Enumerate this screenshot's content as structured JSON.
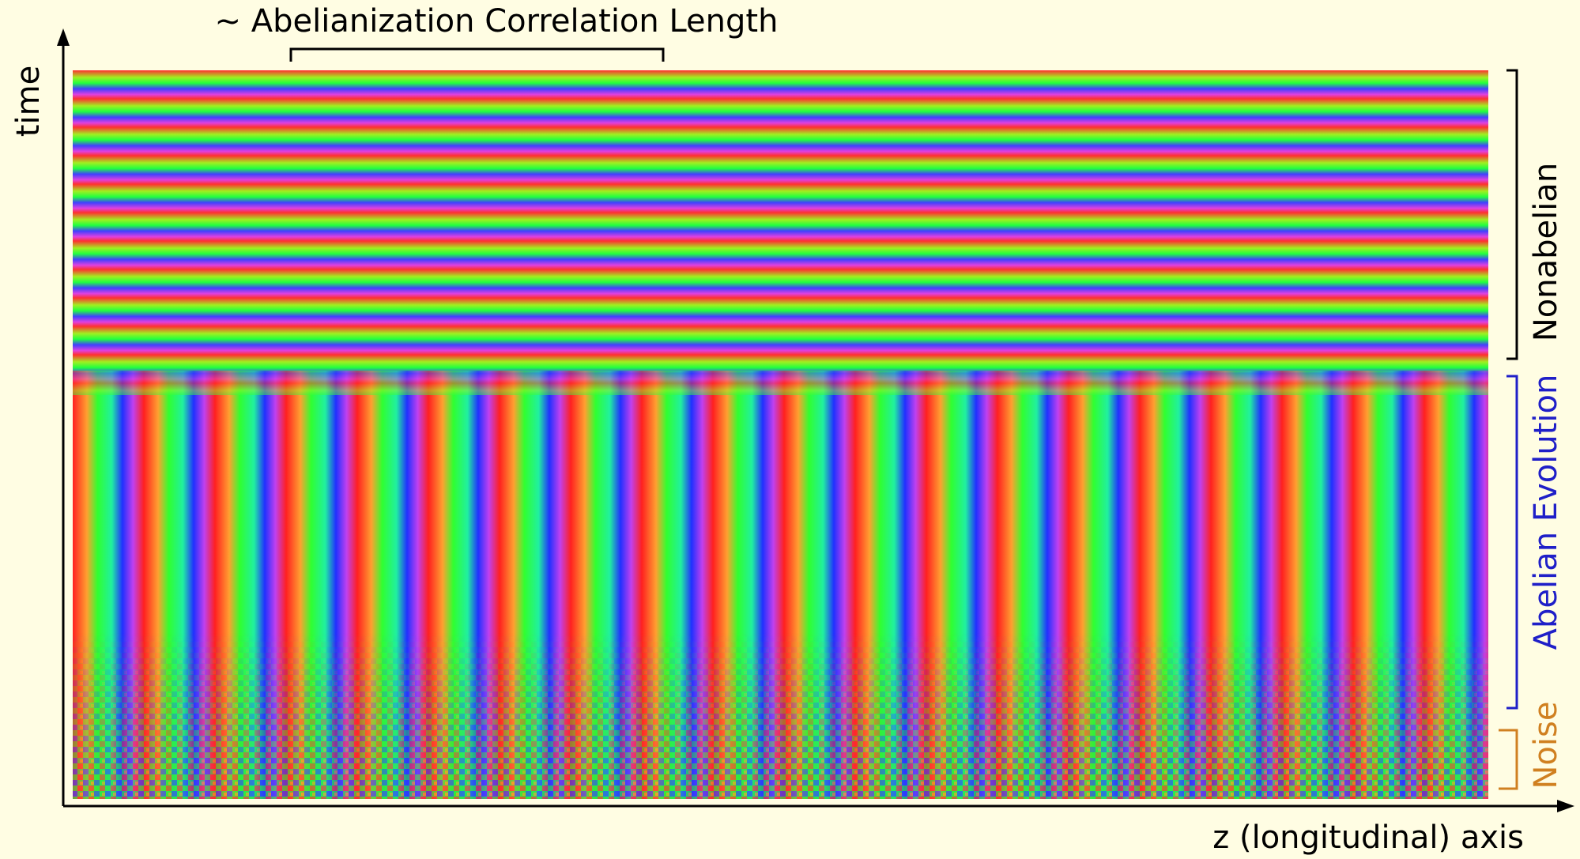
{
  "title": "~ Abelianization Correlation Length",
  "axes": {
    "y_label": "time",
    "x_label": "z (longitudinal) axis"
  },
  "regions": [
    {
      "label": "Nonabelian"
    },
    {
      "label": "Abelian Evolution"
    },
    {
      "label": "Noise"
    }
  ]
}
